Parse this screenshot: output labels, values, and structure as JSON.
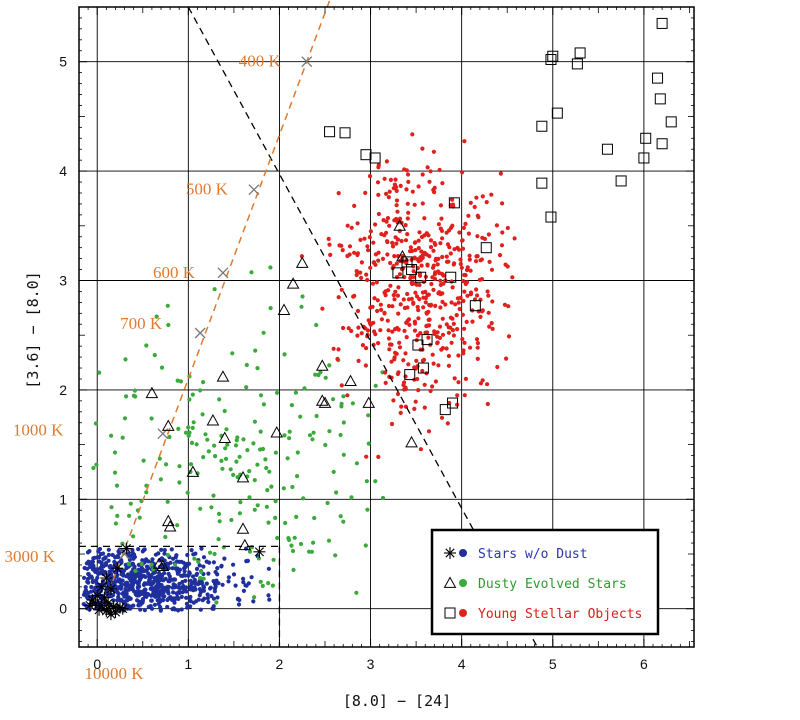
{
  "chart_data": {
    "type": "scatter",
    "xlabel": "[8.0] − [24]",
    "ylabel": "[3.6] − [8.0]",
    "xlim": [
      -0.2,
      6.55
    ],
    "ylim": [
      -0.35,
      5.5
    ],
    "x_ticks": [
      0,
      1,
      2,
      3,
      4,
      5,
      6
    ],
    "y_ticks": [
      0,
      1,
      2,
      3,
      4,
      5
    ],
    "grid": true,
    "legend": {
      "placement": "bottom-right",
      "entries": [
        {
          "label": "Stars w/o Dust",
          "color": "#1f2f9e",
          "text_color": "#2a35a8",
          "markers": [
            "asterisk",
            "dot"
          ]
        },
        {
          "label": "Dusty Evolved Stars",
          "color": "#3aaa3a",
          "text_color": "#2f9a2f",
          "markers": [
            "triangle",
            "dot"
          ]
        },
        {
          "label": "Young Stellar Objects",
          "color": "#e0201c",
          "text_color": "#d8201c",
          "markers": [
            "square",
            "dot"
          ]
        }
      ]
    },
    "temperature_track": {
      "color": "#e07a2e",
      "points": [
        {
          "label": "400 K",
          "x": 2.3,
          "y": 5.0
        },
        {
          "label": "500 K",
          "x": 1.72,
          "y": 3.83
        },
        {
          "label": "600 K",
          "x": 1.38,
          "y": 3.07
        },
        {
          "label": "700 K",
          "x": 1.13,
          "y": 2.52
        },
        {
          "label": "1000 K",
          "x": 0.72,
          "y": 1.6
        },
        {
          "label": "3000 K",
          "x": 0.3,
          "y": 0.5
        },
        {
          "label": "10000 K",
          "x": 0.08,
          "y": 0.05
        }
      ]
    },
    "boundary_lines": [
      {
        "style": "dashed",
        "color": "#000000",
        "from": [
          1.0,
          5.5
        ],
        "to": [
          4.83,
          -0.35
        ]
      },
      {
        "style": "dashed",
        "color": "#000000",
        "from": [
          -0.2,
          0.57
        ],
        "to": [
          2.0,
          0.57
        ]
      },
      {
        "style": "dashed",
        "color": "#000000",
        "from": [
          2.0,
          0.57
        ],
        "to": [
          2.0,
          -0.35
        ]
      }
    ],
    "series": [
      {
        "name": "Young Stellar Objects",
        "marker": "square",
        "points": [
          [
            5.0,
            5.05
          ],
          [
            5.3,
            5.08
          ],
          [
            5.27,
            4.98
          ],
          [
            4.98,
            5.02
          ],
          [
            6.2,
            5.35
          ],
          [
            2.55,
            4.36
          ],
          [
            2.72,
            4.35
          ],
          [
            2.95,
            4.15
          ],
          [
            3.05,
            4.12
          ],
          [
            4.88,
            4.41
          ],
          [
            5.05,
            4.53
          ],
          [
            6.15,
            4.85
          ],
          [
            6.18,
            4.66
          ],
          [
            6.3,
            4.45
          ],
          [
            6.02,
            4.3
          ],
          [
            6.2,
            4.25
          ],
          [
            5.6,
            4.2
          ],
          [
            6.0,
            4.12
          ],
          [
            4.88,
            3.89
          ],
          [
            5.75,
            3.91
          ],
          [
            3.92,
            3.71
          ],
          [
            4.98,
            3.58
          ],
          [
            3.4,
            3.17
          ],
          [
            4.27,
            3.3
          ],
          [
            3.3,
            3.07
          ],
          [
            3.45,
            3.1
          ],
          [
            3.55,
            3.03
          ],
          [
            3.88,
            3.03
          ],
          [
            4.15,
            2.77
          ],
          [
            3.62,
            2.46
          ],
          [
            3.52,
            2.41
          ],
          [
            3.58,
            2.2
          ],
          [
            3.43,
            2.14
          ],
          [
            3.9,
            1.88
          ],
          [
            3.82,
            1.82
          ],
          [
            3.95,
            0.05
          ]
        ]
      },
      {
        "name": "Dusty Evolved Stars",
        "marker": "triangle",
        "points": [
          [
            3.32,
            3.5
          ],
          [
            2.25,
            3.16
          ],
          [
            2.15,
            2.97
          ],
          [
            3.35,
            3.22
          ],
          [
            2.05,
            2.73
          ],
          [
            1.38,
            2.12
          ],
          [
            0.6,
            1.97
          ],
          [
            2.47,
            2.22
          ],
          [
            2.78,
            2.08
          ],
          [
            2.47,
            1.9
          ],
          [
            2.5,
            1.88
          ],
          [
            2.98,
            1.88
          ],
          [
            1.27,
            1.72
          ],
          [
            0.78,
            1.67
          ],
          [
            1.4,
            1.56
          ],
          [
            1.97,
            1.61
          ],
          [
            3.45,
            1.52
          ],
          [
            1.05,
            1.25
          ],
          [
            1.6,
            1.2
          ],
          [
            0.78,
            0.8
          ],
          [
            1.6,
            0.73
          ],
          [
            0.8,
            0.75
          ],
          [
            1.62,
            0.58
          ],
          [
            0.68,
            0.41
          ],
          [
            0.72,
            0.39
          ]
        ]
      },
      {
        "name": "Stars w/o Dust",
        "marker": "asterisk",
        "points": [
          [
            1.78,
            0.52
          ],
          [
            0.32,
            0.55
          ],
          [
            0.22,
            0.37
          ],
          [
            0.1,
            0.28
          ],
          [
            0.05,
            0.2
          ],
          [
            0.15,
            0.18
          ],
          [
            0.0,
            0.12
          ],
          [
            0.08,
            0.1
          ],
          [
            0.12,
            0.05
          ],
          [
            -0.02,
            0.05
          ],
          [
            0.05,
            0.03
          ],
          [
            0.18,
            0.02
          ],
          [
            0.25,
            0.01
          ],
          [
            0.1,
            -0.02
          ],
          [
            -0.05,
            0.08
          ],
          [
            0.2,
            -0.03
          ],
          [
            0.12,
            0.0
          ],
          [
            -0.08,
            0.03
          ],
          [
            0.02,
            -0.01
          ],
          [
            0.28,
            0.0
          ],
          [
            0.15,
            -0.05
          ]
        ]
      }
    ],
    "dot_clouds": [
      {
        "name": "Stars w/o Dust",
        "color": "#1f2f9e",
        "count": 720,
        "x_center": 0.35,
        "x_spread": 0.55,
        "x_range": [
          -0.15,
          1.95
        ],
        "y_center": 0.25,
        "y_spread": 0.17,
        "y_range": [
          -0.02,
          0.55
        ],
        "seed": 11
      },
      {
        "name": "Dusty Evolved Stars",
        "color": "#3aaa3a",
        "count": 230,
        "x_center": 1.4,
        "x_spread": 0.95,
        "x_range": [
          -0.15,
          3.3
        ],
        "y_center": 1.2,
        "y_spread": 0.75,
        "y_range": [
          0.05,
          3.45
        ],
        "seed": 23
      },
      {
        "name": "Young Stellar Objects",
        "color": "#e0201c",
        "count": 560,
        "x_center": 3.55,
        "x_spread": 0.42,
        "x_range": [
          2.1,
          6.4
        ],
        "y_center": 3.0,
        "y_spread": 0.55,
        "y_range": [
          0.7,
          4.65
        ],
        "seed": 37
      }
    ]
  }
}
